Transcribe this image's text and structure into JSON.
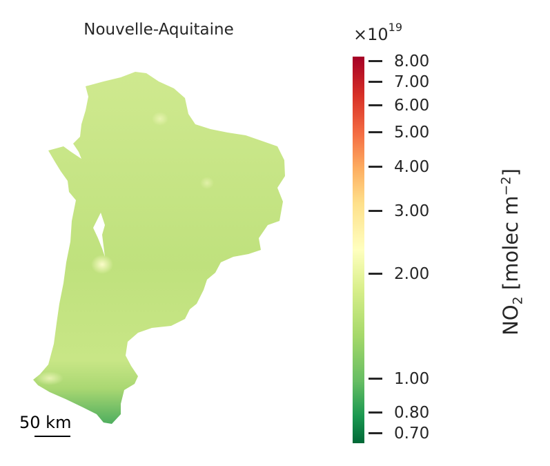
{
  "map": {
    "title": "Nouvelle-Aquitaine",
    "region_fill_colors": [
      "#c5e585",
      "#b9de78",
      "#f3f8b7"
    ],
    "scale_bar": {
      "label": "50 km"
    }
  },
  "colorbar": {
    "multiplier_base": "×10",
    "multiplier_exp": "19",
    "scale": "log",
    "colormap": "RdYlGn_r",
    "range": [
      0.68,
      8.4
    ],
    "ticks": [
      "8.00",
      "7.00",
      "6.00",
      "5.00",
      "4.00",
      "3.00",
      "2.00",
      "1.00",
      "0.80",
      "0.70"
    ],
    "label_prefix": "NO",
    "label_sub": "2",
    "label_mid": " [molec m",
    "label_sup": "−2",
    "label_suffix": "]"
  }
}
